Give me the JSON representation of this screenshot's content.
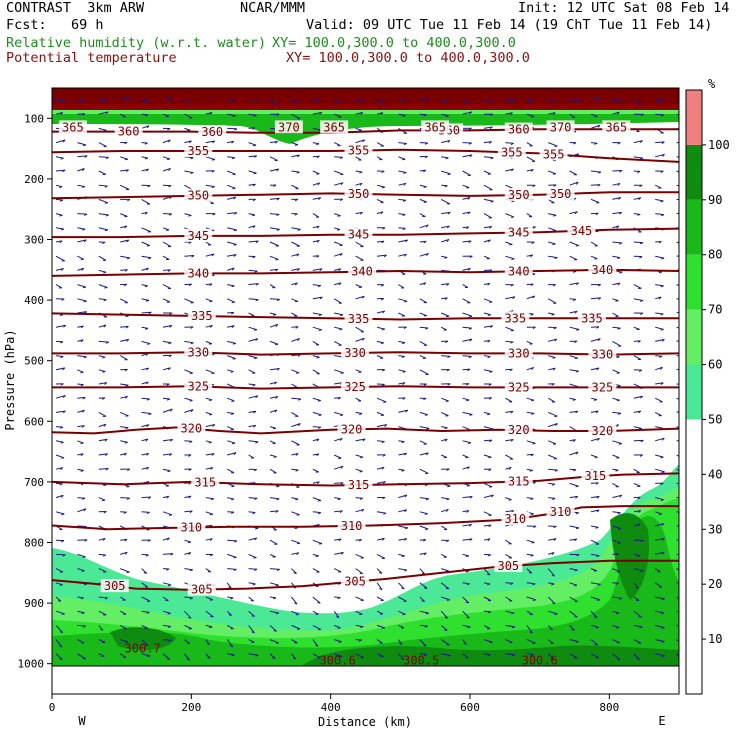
{
  "header": {
    "model": "CONTRAST  3km ARW",
    "center": "NCAR/MMM",
    "init": "Init: 12 UTC Sat 08 Feb 14",
    "fcst": "Fcst:   69 h",
    "valid": "Valid: 09 UTC Tue 11 Feb 14 (19 ChT Tue 11 Feb 14)",
    "field1_name": "Relative humidity (w.r.t. water)",
    "field1_xy": "XY= 100.0,300.0 to 400.0,300.0",
    "field2_name": "Potential temperature",
    "field2_xy": "XY= 100.0,300.0 to 400.0,300.0"
  },
  "chart_data": {
    "type": "contour",
    "xlabel": "Distance (km)",
    "ylabel": "Pressure (hPa)",
    "x_ticks": [
      0,
      200,
      400,
      600,
      800
    ],
    "y_ticks": [
      100,
      200,
      300,
      400,
      500,
      600,
      700,
      800,
      900,
      1000
    ],
    "xlim": [
      0,
      900
    ],
    "ylim": [
      1050,
      50
    ],
    "x_end_labels": {
      "left": "W",
      "right": "E"
    },
    "colorbar": {
      "unit": "%",
      "ticks": [
        10,
        20,
        30,
        40,
        50,
        60,
        70,
        80,
        90,
        100
      ],
      "bins": [
        {
          "from": 50,
          "to": 60,
          "color": "#4be896"
        },
        {
          "from": 60,
          "to": 70,
          "color": "#64ee64"
        },
        {
          "from": 70,
          "to": 80,
          "color": "#2fe02f"
        },
        {
          "from": 80,
          "to": 90,
          "color": "#19b919"
        },
        {
          "from": 90,
          "to": 100,
          "color": "#0f8c0f"
        },
        {
          "from": 100,
          "to": 110,
          "color": "#f08080"
        }
      ]
    },
    "theta_contours": [
      {
        "level": 305,
        "points": [
          [
            0,
            862
          ],
          [
            60,
            868
          ],
          [
            120,
            876
          ],
          [
            200,
            878
          ],
          [
            280,
            876
          ],
          [
            360,
            872
          ],
          [
            420,
            866
          ],
          [
            480,
            860
          ],
          [
            560,
            850
          ],
          [
            640,
            840
          ],
          [
            720,
            834
          ],
          [
            800,
            830
          ],
          [
            900,
            830
          ]
        ],
        "labels": [
          [
            90,
            305
          ],
          [
            215,
            305
          ],
          [
            435,
            305
          ],
          [
            655,
            305
          ]
        ]
      },
      {
        "level": 310,
        "points": [
          [
            0,
            772
          ],
          [
            80,
            778
          ],
          [
            160,
            776
          ],
          [
            260,
            774
          ],
          [
            360,
            774
          ],
          [
            460,
            772
          ],
          [
            560,
            768
          ],
          [
            660,
            762
          ],
          [
            720,
            752
          ],
          [
            760,
            742
          ],
          [
            820,
            740
          ],
          [
            900,
            740
          ]
        ],
        "labels": [
          [
            200,
            310
          ],
          [
            430,
            310
          ],
          [
            665,
            310
          ],
          [
            730,
            310
          ]
        ]
      },
      {
        "level": 315,
        "points": [
          [
            0,
            700
          ],
          [
            100,
            704
          ],
          [
            200,
            700
          ],
          [
            300,
            704
          ],
          [
            400,
            706
          ],
          [
            500,
            704
          ],
          [
            600,
            702
          ],
          [
            700,
            698
          ],
          [
            760,
            692
          ],
          [
            820,
            688
          ],
          [
            900,
            686
          ]
        ],
        "labels": [
          [
            220,
            315
          ],
          [
            440,
            315
          ],
          [
            670,
            315
          ],
          [
            780,
            315
          ]
        ]
      },
      {
        "level": 320,
        "points": [
          [
            0,
            618
          ],
          [
            60,
            620
          ],
          [
            120,
            614
          ],
          [
            180,
            610
          ],
          [
            240,
            616
          ],
          [
            300,
            620
          ],
          [
            400,
            614
          ],
          [
            480,
            612
          ],
          [
            560,
            616
          ],
          [
            640,
            614
          ],
          [
            720,
            616
          ],
          [
            800,
            616
          ],
          [
            900,
            612
          ]
        ],
        "labels": [
          [
            200,
            320
          ],
          [
            430,
            320
          ],
          [
            670,
            320
          ],
          [
            790,
            320
          ]
        ]
      },
      {
        "level": 325,
        "points": [
          [
            0,
            544
          ],
          [
            100,
            544
          ],
          [
            200,
            542
          ],
          [
            300,
            546
          ],
          [
            400,
            544
          ],
          [
            500,
            542
          ],
          [
            600,
            544
          ],
          [
            700,
            544
          ],
          [
            800,
            544
          ],
          [
            900,
            544
          ]
        ],
        "labels": [
          [
            210,
            325
          ],
          [
            435,
            325
          ],
          [
            670,
            325
          ],
          [
            790,
            325
          ]
        ]
      },
      {
        "level": 330,
        "points": [
          [
            0,
            488
          ],
          [
            100,
            488
          ],
          [
            200,
            486
          ],
          [
            300,
            490
          ],
          [
            400,
            488
          ],
          [
            500,
            486
          ],
          [
            600,
            488
          ],
          [
            700,
            488
          ],
          [
            800,
            490
          ],
          [
            900,
            488
          ]
        ],
        "labels": [
          [
            210,
            330
          ],
          [
            435,
            330
          ],
          [
            670,
            330
          ],
          [
            790,
            330
          ]
        ]
      },
      {
        "level": 335,
        "points": [
          [
            0,
            422
          ],
          [
            100,
            424
          ],
          [
            200,
            426
          ],
          [
            300,
            428
          ],
          [
            400,
            430
          ],
          [
            500,
            432
          ],
          [
            600,
            430
          ],
          [
            700,
            430
          ],
          [
            800,
            430
          ],
          [
            900,
            430
          ]
        ],
        "labels": [
          [
            215,
            335
          ],
          [
            440,
            335
          ],
          [
            665,
            335
          ],
          [
            775,
            335
          ]
        ]
      },
      {
        "level": 340,
        "points": [
          [
            0,
            360
          ],
          [
            100,
            358
          ],
          [
            200,
            356
          ],
          [
            300,
            356
          ],
          [
            400,
            354
          ],
          [
            500,
            352
          ],
          [
            600,
            354
          ],
          [
            700,
            352
          ],
          [
            800,
            350
          ],
          [
            900,
            352
          ]
        ],
        "labels": [
          [
            210,
            340
          ],
          [
            445,
            340
          ],
          [
            670,
            340
          ],
          [
            790,
            340
          ]
        ]
      },
      {
        "level": 345,
        "points": [
          [
            0,
            296
          ],
          [
            100,
            296
          ],
          [
            200,
            294
          ],
          [
            300,
            294
          ],
          [
            400,
            292
          ],
          [
            500,
            292
          ],
          [
            600,
            290
          ],
          [
            700,
            288
          ],
          [
            800,
            284
          ],
          [
            900,
            282
          ]
        ],
        "labels": [
          [
            210,
            345
          ],
          [
            440,
            345
          ],
          [
            670,
            345
          ],
          [
            760,
            345
          ]
        ]
      },
      {
        "level": 350,
        "points": [
          [
            0,
            232
          ],
          [
            100,
            230
          ],
          [
            200,
            228
          ],
          [
            300,
            226
          ],
          [
            400,
            224
          ],
          [
            500,
            226
          ],
          [
            600,
            228
          ],
          [
            700,
            226
          ],
          [
            800,
            222
          ],
          [
            900,
            222
          ]
        ],
        "labels": [
          [
            210,
            350
          ],
          [
            440,
            350
          ],
          [
            670,
            350
          ],
          [
            730,
            350
          ]
        ]
      },
      {
        "level": 355,
        "points": [
          [
            0,
            156
          ],
          [
            100,
            154
          ],
          [
            200,
            154
          ],
          [
            300,
            154
          ],
          [
            400,
            154
          ],
          [
            500,
            152
          ],
          [
            600,
            154
          ],
          [
            700,
            158
          ],
          [
            800,
            166
          ],
          [
            900,
            172
          ]
        ],
        "labels": [
          [
            210,
            355
          ],
          [
            440,
            355
          ],
          [
            660,
            355
          ],
          [
            720,
            355
          ]
        ]
      },
      {
        "level": 360,
        "points": [
          [
            0,
            122
          ],
          [
            100,
            122
          ],
          [
            200,
            122
          ],
          [
            300,
            124
          ],
          [
            400,
            124
          ],
          [
            500,
            120
          ],
          [
            600,
            120
          ],
          [
            700,
            118
          ],
          [
            800,
            118
          ],
          [
            900,
            118
          ]
        ],
        "labels": [
          [
            110,
            360
          ],
          [
            230,
            360
          ],
          [
            570,
            360
          ],
          [
            670,
            360
          ]
        ]
      }
    ],
    "upper_labels": [
      [
        30,
        365
      ],
      [
        340,
        370
      ],
      [
        405,
        365
      ],
      [
        550,
        365
      ],
      [
        730,
        370
      ],
      [
        810,
        365
      ]
    ],
    "low_labels": [
      [
        130,
        300.7
      ],
      [
        410,
        300.6
      ],
      [
        530,
        300.5
      ],
      [
        700,
        300.6
      ]
    ]
  }
}
